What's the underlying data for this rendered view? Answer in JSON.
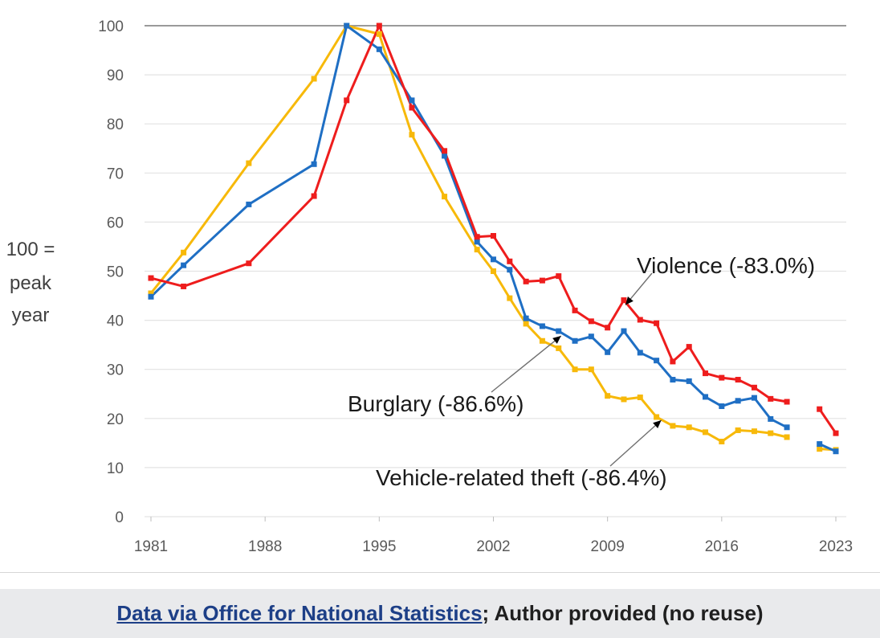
{
  "chart_data": {
    "type": "line",
    "ylabel_lines": [
      "100 =",
      "peak",
      "year"
    ],
    "ylim": [
      0,
      100
    ],
    "yticks": [
      0,
      10,
      20,
      30,
      40,
      50,
      60,
      70,
      80,
      90,
      100
    ],
    "xlim": [
      1981,
      2023
    ],
    "xticks": [
      1981,
      1988,
      1995,
      2002,
      2009,
      2016,
      2023
    ],
    "grid": true,
    "series": [
      {
        "name": "Vehicle-related theft",
        "label": "Vehicle-related theft (-86.4%)",
        "color": "#f7b90a",
        "x": [
          1981,
          1983,
          1987,
          1991,
          1993,
          1995,
          1997,
          1999,
          2001,
          2002,
          2003,
          2004,
          2005,
          2006,
          2007,
          2008,
          2009,
          2010,
          2011,
          2012,
          2013,
          2014,
          2015,
          2016,
          2017,
          2018,
          2019,
          2020,
          2022,
          2023
        ],
        "values": [
          45.5,
          53.8,
          72.0,
          89.2,
          100.0,
          98.3,
          77.8,
          65.2,
          54.4,
          50.0,
          44.5,
          39.3,
          35.8,
          34.3,
          30.0,
          30.0,
          24.6,
          23.9,
          24.3,
          20.3,
          18.5,
          18.2,
          17.2,
          15.3,
          17.6,
          17.4,
          17.0,
          16.2,
          13.8,
          13.6
        ]
      },
      {
        "name": "Burglary",
        "label": "Burglary (-86.6%)",
        "color": "#1f6fc4",
        "x": [
          1981,
          1983,
          1987,
          1991,
          1993,
          1995,
          1997,
          1999,
          2001,
          2002,
          2003,
          2004,
          2005,
          2006,
          2007,
          2008,
          2009,
          2010,
          2011,
          2012,
          2013,
          2014,
          2015,
          2016,
          2017,
          2018,
          2019,
          2020,
          2022,
          2023
        ],
        "values": [
          44.8,
          51.2,
          63.6,
          71.8,
          100.0,
          95.2,
          84.8,
          73.5,
          56.0,
          52.4,
          50.3,
          40.4,
          38.8,
          37.8,
          35.8,
          36.7,
          33.5,
          37.8,
          33.4,
          31.8,
          27.9,
          27.6,
          24.4,
          22.5,
          23.6,
          24.2,
          19.9,
          18.2,
          14.8,
          13.3
        ]
      },
      {
        "name": "Violence",
        "label": "Violence (-83.0%)",
        "color": "#ee1d1d",
        "x": [
          1981,
          1983,
          1987,
          1991,
          1993,
          1995,
          1997,
          1999,
          2001,
          2002,
          2003,
          2004,
          2005,
          2006,
          2007,
          2008,
          2009,
          2010,
          2011,
          2012,
          2013,
          2014,
          2015,
          2016,
          2017,
          2018,
          2019,
          2020,
          2022,
          2023
        ],
        "values": [
          48.6,
          46.9,
          51.6,
          65.3,
          84.8,
          100.0,
          83.3,
          74.5,
          57.0,
          57.2,
          52.0,
          47.9,
          48.1,
          49.0,
          42.0,
          39.8,
          38.5,
          44.1,
          40.1,
          39.4,
          31.6,
          34.6,
          29.2,
          28.3,
          27.9,
          26.3,
          24.0,
          23.4,
          21.9,
          17.0
        ]
      }
    ],
    "annotations": [
      {
        "series": "Violence",
        "text": "Violence (-83.0%)",
        "arrow_to_x": 2010,
        "arrow_to_y": 44.1
      },
      {
        "series": "Burglary",
        "text": "Burglary (-86.6%)",
        "arrow_to_x": 2006,
        "arrow_to_y": 37.8
      },
      {
        "series": "Vehicle-related theft",
        "text": "Vehicle-related theft (-86.4%)",
        "arrow_to_x": 2012,
        "arrow_to_y": 20.3
      }
    ]
  },
  "caption": {
    "link_text": "Data via Office for National Statistics",
    "rest_text": "; Author provided (no reuse)"
  }
}
